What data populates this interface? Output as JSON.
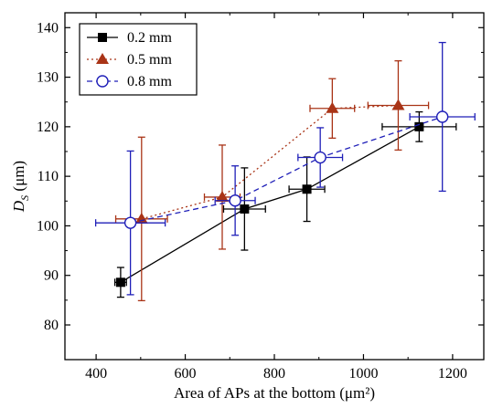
{
  "chart_data": {
    "type": "scatter",
    "xlabel": "Area of APs at the bottom (μm²)",
    "ylabel": "D_S (μm)",
    "ylabel_main": "D",
    "ylabel_sub": "S",
    "ylabel_unit": " (μm)",
    "xlim": [
      330,
      1270
    ],
    "ylim": [
      73,
      143
    ],
    "xticks": [
      400,
      600,
      800,
      1000,
      1200
    ],
    "yticks": [
      80,
      90,
      100,
      110,
      120,
      130,
      140
    ],
    "grid": false,
    "legend_position": "top-left",
    "series": [
      {
        "name": "0.2 mm",
        "color": "#000000",
        "marker": "filled-square",
        "line": "solid",
        "points": [
          {
            "x": 455,
            "y": 88.6,
            "xerr": 13,
            "yerr": 3
          },
          {
            "x": 733,
            "y": 103.4,
            "xerr": 47,
            "yerr": 8.3
          },
          {
            "x": 873,
            "y": 107.4,
            "xerr": 40,
            "yerr": 6.5
          },
          {
            "x": 1125,
            "y": 120.0,
            "xerr": 83,
            "yerr": 3
          }
        ]
      },
      {
        "name": "0.5 mm",
        "color": "#a93417",
        "marker": "filled-triangle",
        "line": "dotted",
        "points": [
          {
            "x": 502,
            "y": 101.4,
            "xerr": 58,
            "yerr": 16.5
          },
          {
            "x": 683,
            "y": 105.8,
            "xerr": 40,
            "yerr": 10.5
          },
          {
            "x": 930,
            "y": 123.7,
            "xerr": 50,
            "yerr": 6
          },
          {
            "x": 1078,
            "y": 124.3,
            "xerr": 68,
            "yerr": 9
          }
        ]
      },
      {
        "name": "0.8 mm",
        "color": "#1f1fb8",
        "marker": "open-circle",
        "line": "dashed",
        "points": [
          {
            "x": 477,
            "y": 100.6,
            "xerr": 78,
            "yerr": 14.5
          },
          {
            "x": 712,
            "y": 105.1,
            "xerr": 45,
            "yerr": 7
          },
          {
            "x": 903,
            "y": 113.8,
            "xerr": 50,
            "yerr": 6
          },
          {
            "x": 1177,
            "y": 122.0,
            "xerr": 73,
            "yerr": 15
          }
        ]
      }
    ]
  }
}
